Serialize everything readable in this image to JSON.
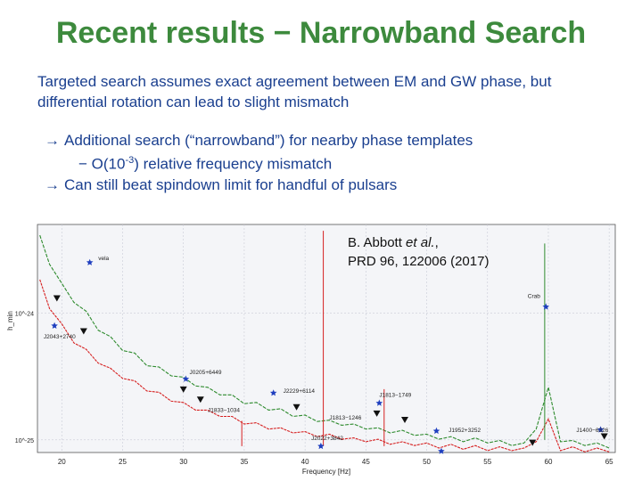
{
  "slide": {
    "title": "Recent results − Narrowband Search",
    "intro": "Targeted search assumes exact agreement between EM and GW phase, but differential rotation can lead to slight mismatch",
    "bullet1": "Additional search (“narrowband”) for nearby phase templates",
    "bullet1_sub_prefix": "− O(10",
    "bullet1_sub_exp": "-3",
    "bullet1_sub_suffix": ") relative frequency mismatch",
    "bullet2": "Can still beat spindown limit for handful of pulsars",
    "arrow": "→",
    "citation_line1_a": "B. Abbott ",
    "citation_line1_b": "et al.",
    "citation_line1_c": ",",
    "citation_line2": "PRD  96, 122006 (2017)"
  },
  "chart_data": {
    "type": "line",
    "xlabel": "Frequency [Hz]",
    "ylabel": "h_min",
    "xlim": [
      18,
      65.5
    ],
    "ylim_log10": [
      -25.1,
      -23.3
    ],
    "y_ticks": [
      {
        "value": -24,
        "label": "10^-24"
      },
      {
        "value": -25,
        "label": "10^-25"
      }
    ],
    "x_ticks": [
      20,
      25,
      30,
      35,
      40,
      45,
      50,
      55,
      60,
      65
    ],
    "grid": true,
    "series": [
      {
        "name": "",
        "color": "#2e8b2e",
        "x": [
          18.2,
          19,
          20,
          21,
          22,
          23,
          24,
          25,
          26,
          27,
          28,
          29,
          30,
          31,
          32,
          33,
          34,
          35,
          36,
          37,
          38,
          39,
          40,
          41,
          42,
          43,
          44,
          45,
          46,
          47,
          48,
          49,
          50,
          51,
          52,
          53,
          54,
          55,
          56,
          57,
          58,
          59,
          60,
          61,
          62,
          63,
          64,
          65
        ],
        "y": [
          -23.4,
          -23.6,
          -23.78,
          -23.9,
          -24.0,
          -24.12,
          -24.2,
          -24.28,
          -24.33,
          -24.4,
          -24.44,
          -24.48,
          -24.52,
          -24.56,
          -24.6,
          -24.63,
          -24.66,
          -24.7,
          -24.72,
          -24.75,
          -24.77,
          -24.8,
          -24.82,
          -24.84,
          -24.86,
          -24.87,
          -24.89,
          -24.9,
          -24.92,
          -24.93,
          -24.94,
          -24.95,
          -24.97,
          -24.98,
          -24.99,
          -25.0,
          -25.0,
          -25.01,
          -25.02,
          -25.03,
          -25.04,
          -24.9,
          -24.6,
          -25.0,
          -25.02,
          -25.03,
          -25.04,
          -25.05
        ]
      },
      {
        "name": "",
        "color": "#d62020",
        "x": [
          18.2,
          19,
          20,
          21,
          22,
          23,
          24,
          25,
          26,
          27,
          28,
          29,
          30,
          31,
          32,
          33,
          34,
          35,
          36,
          37,
          38,
          39,
          40,
          41,
          42,
          43,
          44,
          45,
          46,
          47,
          48,
          49,
          50,
          51,
          52,
          53,
          54,
          55,
          56,
          57,
          58,
          59,
          60,
          61,
          62,
          63,
          64,
          65
        ],
        "y": [
          -23.75,
          -23.95,
          -24.1,
          -24.22,
          -24.3,
          -24.38,
          -24.45,
          -24.5,
          -24.55,
          -24.6,
          -24.64,
          -24.68,
          -24.72,
          -24.75,
          -24.78,
          -24.8,
          -24.83,
          -24.86,
          -24.88,
          -24.9,
          -24.92,
          -24.93,
          -24.95,
          -24.96,
          -24.97,
          -24.98,
          -25.0,
          -25.0,
          -25.01,
          -25.02,
          -25.03,
          -25.03,
          -25.04,
          -25.05,
          -25.05,
          -25.06,
          -25.06,
          -25.07,
          -25.07,
          -25.07,
          -25.08,
          -25.0,
          -24.85,
          -25.07,
          -25.07,
          -25.08,
          -25.08,
          -25.08
        ]
      }
    ],
    "spikes": [
      {
        "x": 41.5,
        "y": -23.35,
        "color": "#d62020"
      },
      {
        "x": 59.7,
        "y": -23.45,
        "color": "#2e8b2e"
      },
      {
        "x": 46.5,
        "y": -24.6,
        "color": "#d62020"
      },
      {
        "x": 34.8,
        "y": -24.85,
        "color": "#d62020"
      }
    ],
    "stars": [
      {
        "x": 22.3,
        "y": -23.6
      },
      {
        "x": 19.4,
        "y": -24.1
      },
      {
        "x": 30.2,
        "y": -24.52
      },
      {
        "x": 37.4,
        "y": -24.63
      },
      {
        "x": 46.1,
        "y": -24.71
      },
      {
        "x": 50.8,
        "y": -24.93
      },
      {
        "x": 41.3,
        "y": -25.05
      },
      {
        "x": 51.2,
        "y": -25.09
      },
      {
        "x": 59.8,
        "y": -23.95
      },
      {
        "x": 64.3,
        "y": -24.92
      }
    ],
    "triangles": [
      {
        "x": 19.6,
        "y": -23.88
      },
      {
        "x": 21.8,
        "y": -24.14
      },
      {
        "x": 30.0,
        "y": -24.6
      },
      {
        "x": 31.4,
        "y": -24.68
      },
      {
        "x": 39.3,
        "y": -24.74
      },
      {
        "x": 45.9,
        "y": -24.79
      },
      {
        "x": 48.2,
        "y": -24.84
      },
      {
        "x": 58.7,
        "y": -25.02
      },
      {
        "x": 64.6,
        "y": -24.97
      }
    ],
    "annotations": [
      {
        "text": "vela",
        "x": 23.0,
        "y": -23.58
      },
      {
        "text": "J2043+2740",
        "x": 18.5,
        "y": -24.2
      },
      {
        "text": "J0205+6449",
        "x": 30.5,
        "y": -24.48
      },
      {
        "text": "J2229+6114",
        "x": 38.2,
        "y": -24.63
      },
      {
        "text": "J1833−1034",
        "x": 32.0,
        "y": -24.78
      },
      {
        "text": "J1813−1749",
        "x": 46.1,
        "y": -24.66
      },
      {
        "text": "J1813−1246",
        "x": 42.0,
        "y": -24.84
      },
      {
        "text": "J1952+3252",
        "x": 51.8,
        "y": -24.94
      },
      {
        "text": "J2022+3842",
        "x": 40.5,
        "y": -25.0
      },
      {
        "text": "Crab",
        "x": 58.3,
        "y": -23.88
      },
      {
        "text": "J1400−6326",
        "x": 62.3,
        "y": -24.94
      }
    ]
  }
}
